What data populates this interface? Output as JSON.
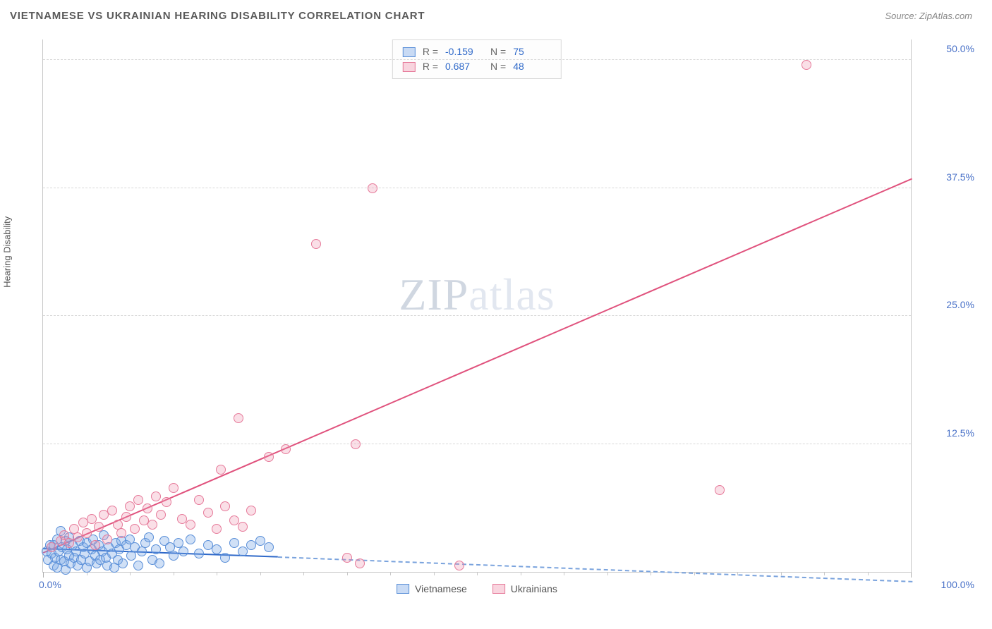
{
  "title": "VIETNAMESE VS UKRAINIAN HEARING DISABILITY CORRELATION CHART",
  "source": "Source: ZipAtlas.com",
  "watermark": {
    "bold": "ZIP",
    "light": "atlas"
  },
  "ylabel": "Hearing Disability",
  "chart": {
    "type": "scatter",
    "background_color": "#ffffff",
    "grid_color": "#d8d8d8",
    "axis_color": "#c8c8c8",
    "xlim": [
      0,
      100
    ],
    "ylim": [
      0,
      52
    ],
    "yticks": [
      12.5,
      25.0,
      37.5,
      50.0
    ],
    "ytick_labels": [
      "12.5%",
      "25.0%",
      "37.5%",
      "50.0%"
    ],
    "xtick_major": [
      0,
      100
    ],
    "xtick_labels": [
      "0.0%",
      "100.0%"
    ],
    "xtick_minor_step": 5,
    "marker_size": 14,
    "series": [
      {
        "id": "vietnamese",
        "label": "Vietnamese",
        "color_fill": "rgba(120,165,230,0.35)",
        "color_stroke": "#5a8fd8",
        "line_color": "#2f69c9",
        "r": "-0.159",
        "n": "75",
        "regression": {
          "x1": 0,
          "y1": 2.4,
          "x2": 27,
          "y2": 1.6,
          "dash_to_x": 100,
          "dash_to_y": -0.8
        },
        "points": [
          [
            0.4,
            2.0
          ],
          [
            0.6,
            1.2
          ],
          [
            0.8,
            2.6
          ],
          [
            1.0,
            1.8
          ],
          [
            1.2,
            0.6
          ],
          [
            1.2,
            2.6
          ],
          [
            1.4,
            1.4
          ],
          [
            1.6,
            3.2
          ],
          [
            1.6,
            0.4
          ],
          [
            1.8,
            2.0
          ],
          [
            2.0,
            1.2
          ],
          [
            2.0,
            4.0
          ],
          [
            2.2,
            2.4
          ],
          [
            2.4,
            1.0
          ],
          [
            2.6,
            3.0
          ],
          [
            2.6,
            0.2
          ],
          [
            2.8,
            2.2
          ],
          [
            3.0,
            1.6
          ],
          [
            3.0,
            3.4
          ],
          [
            3.2,
            0.8
          ],
          [
            3.4,
            2.6
          ],
          [
            3.6,
            1.4
          ],
          [
            3.8,
            2.0
          ],
          [
            4.0,
            0.6
          ],
          [
            4.2,
            3.0
          ],
          [
            4.4,
            1.2
          ],
          [
            4.6,
            2.4
          ],
          [
            4.8,
            1.8
          ],
          [
            5.0,
            0.4
          ],
          [
            5.0,
            2.8
          ],
          [
            5.4,
            1.0
          ],
          [
            5.6,
            2.2
          ],
          [
            5.8,
            3.2
          ],
          [
            6.0,
            1.6
          ],
          [
            6.2,
            0.8
          ],
          [
            6.4,
            2.6
          ],
          [
            6.6,
            1.2
          ],
          [
            6.8,
            2.0
          ],
          [
            7.0,
            3.6
          ],
          [
            7.2,
            1.4
          ],
          [
            7.4,
            0.6
          ],
          [
            7.6,
            2.4
          ],
          [
            8.0,
            1.8
          ],
          [
            8.2,
            0.4
          ],
          [
            8.4,
            2.8
          ],
          [
            8.6,
            1.2
          ],
          [
            8.8,
            2.2
          ],
          [
            9.0,
            3.0
          ],
          [
            9.2,
            0.8
          ],
          [
            9.6,
            2.6
          ],
          [
            10.0,
            3.2
          ],
          [
            10.2,
            1.6
          ],
          [
            10.6,
            2.4
          ],
          [
            11.0,
            0.6
          ],
          [
            11.4,
            2.0
          ],
          [
            11.8,
            2.8
          ],
          [
            12.2,
            3.4
          ],
          [
            12.6,
            1.2
          ],
          [
            13.0,
            2.2
          ],
          [
            13.4,
            0.8
          ],
          [
            14.0,
            3.0
          ],
          [
            14.6,
            2.4
          ],
          [
            15.0,
            1.6
          ],
          [
            15.6,
            2.8
          ],
          [
            16.2,
            2.0
          ],
          [
            17.0,
            3.2
          ],
          [
            18.0,
            1.8
          ],
          [
            19.0,
            2.6
          ],
          [
            20.0,
            2.2
          ],
          [
            21.0,
            1.4
          ],
          [
            22.0,
            2.8
          ],
          [
            23.0,
            2.0
          ],
          [
            24.0,
            2.6
          ],
          [
            25.0,
            3.0
          ],
          [
            26.0,
            2.4
          ]
        ]
      },
      {
        "id": "ukrainians",
        "label": "Ukrainians",
        "color_fill": "rgba(240,150,175,0.30)",
        "color_stroke": "#e67a9a",
        "line_color": "#e0527d",
        "r": "0.687",
        "n": "48",
        "regression": {
          "x1": 0,
          "y1": 2.0,
          "x2": 100,
          "y2": 38.5
        },
        "points": [
          [
            1.0,
            2.4
          ],
          [
            2.0,
            3.0
          ],
          [
            2.4,
            3.6
          ],
          [
            3.0,
            2.8
          ],
          [
            3.6,
            4.2
          ],
          [
            4.0,
            3.4
          ],
          [
            4.6,
            4.8
          ],
          [
            5.0,
            3.8
          ],
          [
            5.6,
            5.2
          ],
          [
            6.0,
            2.6
          ],
          [
            6.4,
            4.4
          ],
          [
            7.0,
            5.6
          ],
          [
            7.4,
            3.2
          ],
          [
            8.0,
            6.0
          ],
          [
            8.6,
            4.6
          ],
          [
            9.0,
            3.8
          ],
          [
            9.6,
            5.4
          ],
          [
            10.0,
            6.4
          ],
          [
            10.6,
            4.2
          ],
          [
            11.0,
            7.0
          ],
          [
            11.6,
            5.0
          ],
          [
            12.0,
            6.2
          ],
          [
            12.6,
            4.6
          ],
          [
            13.0,
            7.4
          ],
          [
            13.6,
            5.6
          ],
          [
            14.2,
            6.8
          ],
          [
            15.0,
            8.2
          ],
          [
            16.0,
            5.2
          ],
          [
            17.0,
            4.6
          ],
          [
            18.0,
            7.0
          ],
          [
            19.0,
            5.8
          ],
          [
            20.0,
            4.2
          ],
          [
            21.0,
            6.4
          ],
          [
            22.0,
            5.0
          ],
          [
            23.0,
            4.4
          ],
          [
            24.0,
            6.0
          ],
          [
            20.5,
            10.0
          ],
          [
            22.5,
            15.0
          ],
          [
            26.0,
            11.2
          ],
          [
            28.0,
            12.0
          ],
          [
            31.5,
            32.0
          ],
          [
            36.0,
            12.5
          ],
          [
            38.0,
            37.5
          ],
          [
            35.0,
            1.4
          ],
          [
            36.5,
            0.8
          ],
          [
            78.0,
            8.0
          ],
          [
            88.0,
            49.5
          ],
          [
            48.0,
            0.6
          ]
        ]
      }
    ]
  },
  "legend_items": [
    {
      "id": "vietnamese",
      "label": "Vietnamese"
    },
    {
      "id": "ukrainians",
      "label": "Ukrainians"
    }
  ]
}
